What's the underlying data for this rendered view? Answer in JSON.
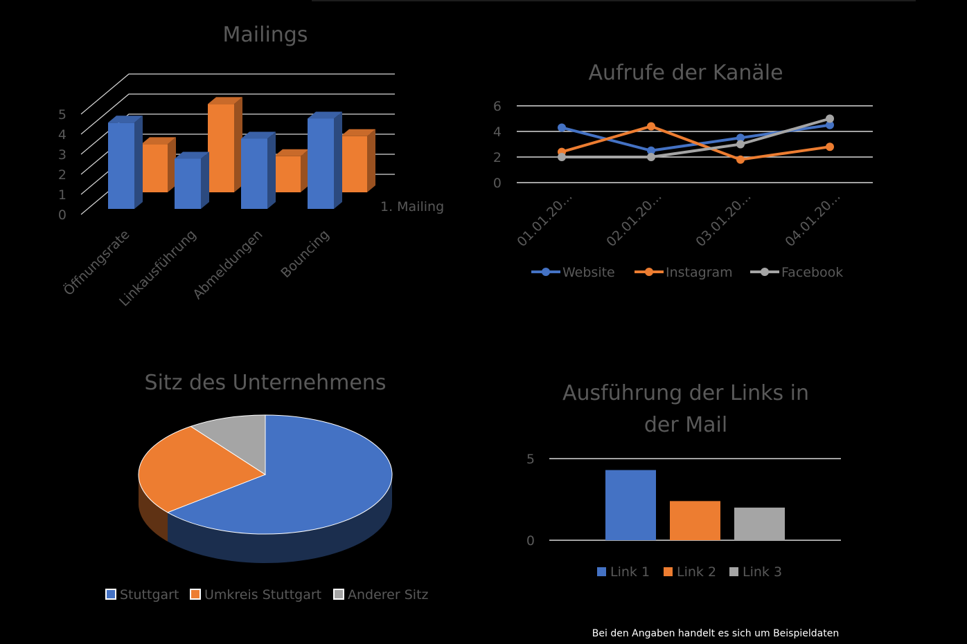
{
  "colors": {
    "blue": "#4472C4",
    "orange": "#ED7D31",
    "gray": "#A5A5A5",
    "text": "#595959",
    "grid": "#D9D9D9"
  },
  "chart_data": [
    {
      "type": "bar",
      "title": "Mailings",
      "categories": [
        "Öffnungsrate",
        "Linkausführung",
        "Abmeldungen",
        "Bouncing"
      ],
      "series": [
        {
          "name": "1. Mailing",
          "values": [
            4.3,
            2.5,
            3.5,
            4.5
          ]
        },
        {
          "values": [
            2.4,
            4.4,
            1.8,
            2.8
          ]
        }
      ],
      "y_ticks": [
        "0",
        "1",
        "2",
        "3",
        "4",
        "5"
      ],
      "ylim": [
        0,
        5
      ]
    },
    {
      "type": "line",
      "title": "Aufrufe der Kanäle",
      "categories": [
        "01.01.20...",
        "02.01.20...",
        "03.01.20...",
        "04.01.20..."
      ],
      "series": [
        {
          "name": "Website",
          "values": [
            4.3,
            2.5,
            3.5,
            4.5
          ]
        },
        {
          "name": "Instagram",
          "values": [
            2.4,
            4.4,
            1.8,
            2.8
          ]
        },
        {
          "name": "Facebook",
          "values": [
            2,
            2,
            3,
            5
          ]
        }
      ],
      "y_ticks": [
        "0",
        "2",
        "4",
        "6"
      ],
      "ylim": [
        0,
        6
      ]
    },
    {
      "type": "pie",
      "title": "Sitz des Unternehmens",
      "categories": [
        "Stuttgart",
        "Umkreis Stuttgart",
        "Anderer Sitz"
      ],
      "values": [
        64,
        26,
        10
      ]
    },
    {
      "type": "bar",
      "title_lines": [
        "Ausführung der Links in",
        "der Mail"
      ],
      "categories": [
        "Link 1",
        "Link 2",
        "Link 3"
      ],
      "values": [
        4.3,
        2.4,
        2
      ],
      "y_ticks": [
        "0",
        "5"
      ],
      "ylim": [
        0,
        5
      ]
    }
  ],
  "footnote": "Bei den Angaben handelt es sich um Beispieldaten"
}
